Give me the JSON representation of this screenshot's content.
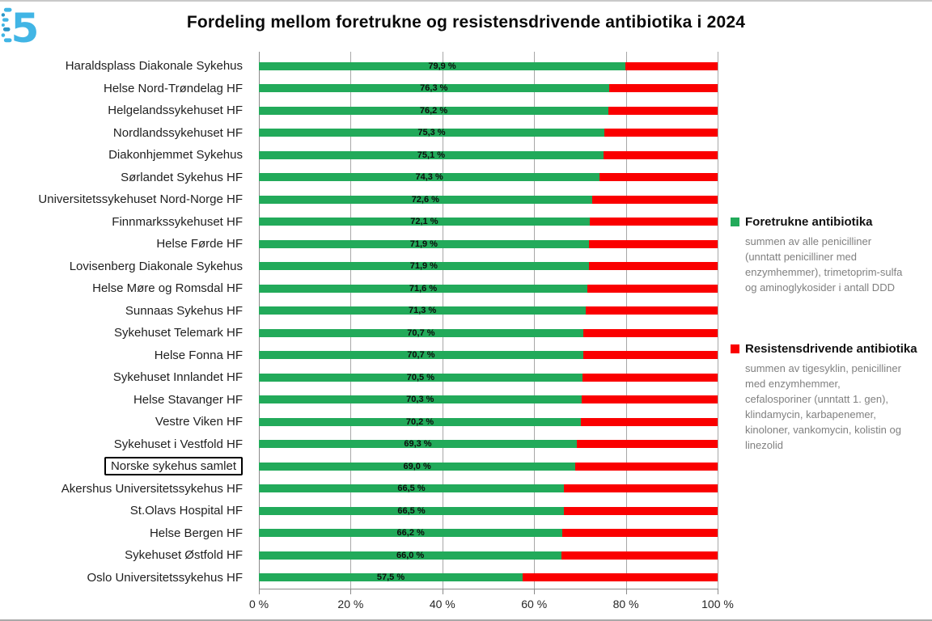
{
  "page": {
    "title": "Fordeling mellom foretrukne og resistensdrivende antibiotika i 2024"
  },
  "logo": {
    "name": "blue-dotted-5-logo",
    "colors": {
      "light_blue": "#41B5E5",
      "dark_blue": "#2A96C8"
    }
  },
  "chart_data": {
    "type": "bar",
    "orientation": "horizontal",
    "stacked": true,
    "title": "Fordeling mellom foretrukne og resistensdrivende antibiotika i 2024",
    "xlabel": "",
    "ylabel": "",
    "xlim": [
      0,
      100
    ],
    "x_tick_values": [
      0,
      20,
      40,
      60,
      80,
      100
    ],
    "x_tick_labels": [
      "0 %",
      "20 %",
      "40 %",
      "60 %",
      "80 %",
      "100 %"
    ],
    "grid": "vertical",
    "legend_position": "right",
    "highlighted_category": "Norske sykehus samlet",
    "categories": [
      "Haraldsplass Diakonale Sykehus",
      "Helse Nord-Trøndelag HF",
      "Helgelandssykehuset HF",
      "Nordlandssykehuset HF",
      "Diakonhjemmet Sykehus",
      "Sørlandet Sykehus HF",
      "Universitetssykehuset Nord-Norge HF",
      "Finnmarkssykehuset HF",
      "Helse Førde HF",
      "Lovisenberg Diakonale Sykehus",
      "Helse Møre og Romsdal HF",
      "Sunnaas Sykehus HF",
      "Sykehuset Telemark HF",
      "Helse Fonna HF",
      "Sykehuset Innlandet HF",
      "Helse Stavanger HF",
      "Vestre Viken HF",
      "Sykehuset i Vestfold HF",
      "Norske sykehus samlet",
      "Akershus Universitetssykehus HF",
      "St.Olavs Hospital HF",
      "Helse Bergen HF",
      "Sykehuset Østfold HF",
      "Oslo Universitetssykehus HF"
    ],
    "series": [
      {
        "name": "Foretrukne antibiotika",
        "color": "#22AA5A",
        "values": [
          79.9,
          76.3,
          76.2,
          75.3,
          75.1,
          74.3,
          72.6,
          72.1,
          71.9,
          71.9,
          71.6,
          71.3,
          70.7,
          70.7,
          70.5,
          70.3,
          70.2,
          69.3,
          69.0,
          66.5,
          66.5,
          66.2,
          66.0,
          57.5
        ]
      },
      {
        "name": "Resistensdrivende antibiotika",
        "color": "#FA0000",
        "values": [
          20.1,
          23.7,
          23.8,
          24.7,
          24.9,
          25.7,
          27.4,
          27.9,
          28.1,
          28.1,
          28.4,
          28.7,
          29.3,
          29.3,
          29.5,
          29.7,
          29.8,
          30.7,
          31.0,
          33.5,
          33.5,
          33.8,
          34.0,
          42.5
        ]
      }
    ],
    "value_labels": [
      "79,9 %",
      "76,3 %",
      "76,2 %",
      "75,3 %",
      "75,1 %",
      "74,3 %",
      "72,6 %",
      "72,1 %",
      "71,9 %",
      "71,9 %",
      "71,6 %",
      "71,3 %",
      "70,7 %",
      "70,7 %",
      "70,5 %",
      "70,3 %",
      "70,2 %",
      "69,3 %",
      "69,0 %",
      "66,5 %",
      "66,5 %",
      "66,2 %",
      "66,0 %",
      "57,5 %"
    ]
  },
  "legend": {
    "items": [
      {
        "label": "Foretrukne antibiotika",
        "color": "#22AA5A",
        "description": "summen av alle penicilliner (unntatt penicilliner med enzymhemmer), trimetoprim-sulfa og aminoglykosider i antall DDD"
      },
      {
        "label": "Resistensdrivende antibiotika",
        "color": "#FA0000",
        "description": "summen av tigesyklin, penicilliner med enzymhemmer, cefalosporiner (unntatt 1. gen), klindamycin, karbapenemer, kinoloner, vankomycin, kolistin og linezolid"
      }
    ]
  }
}
